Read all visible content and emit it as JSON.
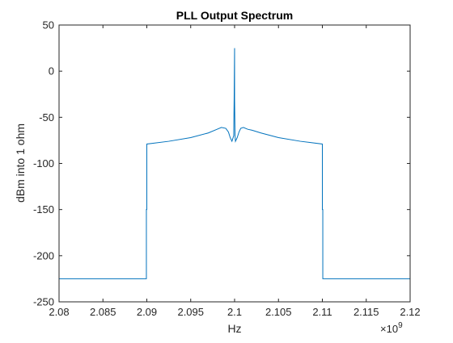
{
  "chart_data": {
    "type": "line",
    "title": "PLL Output Spectrum",
    "xlabel": "Hz",
    "ylabel": "dBm into 1 ohm",
    "x_exponent_base": "×10",
    "x_exponent_power": "9",
    "xlim": [
      2.08,
      2.12
    ],
    "ylim": [
      -250,
      50
    ],
    "x_scale_factor": 1000000000,
    "x_ticks": [
      2.08,
      2.085,
      2.09,
      2.095,
      2.1,
      2.105,
      2.11,
      2.115,
      2.12
    ],
    "x_tick_labels": [
      "2.08",
      "2.085",
      "2.09",
      "2.095",
      "2.1",
      "2.105",
      "2.11",
      "2.115",
      "2.12"
    ],
    "y_ticks": [
      50,
      0,
      -50,
      -100,
      -150,
      -200,
      -250
    ],
    "y_tick_labels": [
      "50",
      "0",
      "-50",
      "-100",
      "-150",
      "-200",
      "-250"
    ],
    "grid": false,
    "line_color": "#0072BD",
    "series": [
      {
        "x": [
          2.08,
          2.08995,
          2.08995,
          2.09,
          2.09,
          2.0925,
          2.095,
          2.097,
          2.098,
          2.0985,
          2.099,
          2.0993,
          2.0995,
          2.0997,
          2.0999,
          2.09995,
          2.1,
          2.1,
          2.10005,
          2.1001,
          2.1003,
          2.1005,
          2.1007,
          2.101,
          2.1015,
          2.102,
          2.103,
          2.105,
          2.1075,
          2.11,
          2.11,
          2.11005,
          2.11005,
          2.12
        ],
        "y": [
          -225,
          -225,
          -150,
          -150,
          -79,
          -76,
          -72,
          -67,
          -63,
          -61,
          -62,
          -66,
          -72,
          -76,
          -70,
          -30,
          25,
          -30,
          -70,
          -76,
          -72,
          -66,
          -62,
          -61,
          -63,
          -64,
          -67,
          -72,
          -76,
          -79,
          -150,
          -150,
          -225,
          -225
        ]
      }
    ]
  }
}
